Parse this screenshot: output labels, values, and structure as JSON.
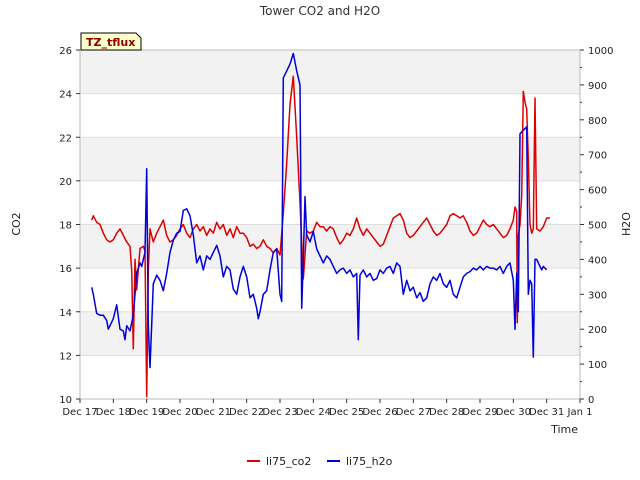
{
  "chart_data": {
    "type": "line",
    "title": "Tower CO2 and H2O",
    "xlabel": "Time",
    "ylabel": "CO2",
    "y2label": "H2O",
    "ylim": [
      10,
      26
    ],
    "y2lim": [
      0,
      1000
    ],
    "xlim": [
      0,
      15
    ],
    "yticks": [
      10,
      12,
      14,
      16,
      18,
      20,
      22,
      24,
      26
    ],
    "y2ticks": [
      0,
      100,
      200,
      300,
      400,
      500,
      600,
      700,
      800,
      900,
      1000
    ],
    "xtick_labels": [
      "Dec 17",
      "Dec 18",
      "Dec 19",
      "Dec 20",
      "Dec 21",
      "Dec 22",
      "Dec 23",
      "Dec 24",
      "Dec 25",
      "Dec 26",
      "Dec 27",
      "Dec 28",
      "Dec 29",
      "Dec 30",
      "Dec 31",
      "Jan 1"
    ],
    "tag_label": "TZ_tflux",
    "legend_position": "bottom-center",
    "series": [
      {
        "name": "li75_co2",
        "axis": "left",
        "color": "#dd0000",
        "points": [
          [
            0.35,
            18.2
          ],
          [
            0.4,
            18.4
          ],
          [
            0.5,
            18.1
          ],
          [
            0.6,
            18.0
          ],
          [
            0.7,
            17.6
          ],
          [
            0.8,
            17.3
          ],
          [
            0.9,
            17.2
          ],
          [
            1.0,
            17.3
          ],
          [
            1.1,
            17.6
          ],
          [
            1.2,
            17.8
          ],
          [
            1.3,
            17.5
          ],
          [
            1.4,
            17.2
          ],
          [
            1.5,
            17.0
          ],
          [
            1.55,
            15.9
          ],
          [
            1.6,
            12.3
          ],
          [
            1.65,
            16.4
          ],
          [
            1.7,
            15.0
          ],
          [
            1.8,
            16.9
          ],
          [
            1.9,
            17.0
          ],
          [
            1.95,
            16.8
          ],
          [
            2.0,
            10.1
          ],
          [
            2.05,
            15.9
          ],
          [
            2.1,
            17.8
          ],
          [
            2.2,
            17.2
          ],
          [
            2.3,
            17.6
          ],
          [
            2.4,
            17.9
          ],
          [
            2.5,
            18.2
          ],
          [
            2.6,
            17.5
          ],
          [
            2.7,
            17.2
          ],
          [
            2.8,
            17.3
          ],
          [
            2.9,
            17.5
          ],
          [
            3.0,
            17.8
          ],
          [
            3.1,
            18.0
          ],
          [
            3.2,
            17.6
          ],
          [
            3.3,
            17.4
          ],
          [
            3.4,
            17.8
          ],
          [
            3.5,
            18.0
          ],
          [
            3.6,
            17.7
          ],
          [
            3.7,
            17.9
          ],
          [
            3.8,
            17.5
          ],
          [
            3.9,
            17.8
          ],
          [
            4.0,
            17.6
          ],
          [
            4.1,
            18.1
          ],
          [
            4.2,
            17.8
          ],
          [
            4.3,
            18.0
          ],
          [
            4.4,
            17.5
          ],
          [
            4.5,
            17.8
          ],
          [
            4.6,
            17.4
          ],
          [
            4.7,
            17.9
          ],
          [
            4.8,
            17.6
          ],
          [
            4.9,
            17.6
          ],
          [
            5.0,
            17.4
          ],
          [
            5.1,
            17.0
          ],
          [
            5.2,
            17.1
          ],
          [
            5.3,
            16.9
          ],
          [
            5.4,
            17.0
          ],
          [
            5.5,
            17.3
          ],
          [
            5.6,
            17.0
          ],
          [
            5.7,
            16.9
          ],
          [
            5.8,
            16.7
          ],
          [
            5.9,
            16.9
          ],
          [
            6.0,
            16.6
          ],
          [
            6.1,
            18.5
          ],
          [
            6.2,
            20.8
          ],
          [
            6.3,
            23.5
          ],
          [
            6.4,
            24.8
          ],
          [
            6.5,
            22.0
          ],
          [
            6.6,
            19.0
          ],
          [
            6.7,
            15.5
          ],
          [
            6.8,
            17.7
          ],
          [
            6.9,
            17.6
          ],
          [
            7.0,
            17.7
          ],
          [
            7.1,
            18.1
          ],
          [
            7.2,
            17.9
          ],
          [
            7.3,
            17.9
          ],
          [
            7.4,
            17.7
          ],
          [
            7.5,
            17.9
          ],
          [
            7.6,
            17.8
          ],
          [
            7.7,
            17.4
          ],
          [
            7.8,
            17.1
          ],
          [
            7.9,
            17.3
          ],
          [
            8.0,
            17.6
          ],
          [
            8.1,
            17.5
          ],
          [
            8.2,
            17.8
          ],
          [
            8.3,
            18.3
          ],
          [
            8.4,
            17.8
          ],
          [
            8.5,
            17.5
          ],
          [
            8.6,
            17.8
          ],
          [
            8.7,
            17.6
          ],
          [
            8.8,
            17.4
          ],
          [
            8.9,
            17.2
          ],
          [
            9.0,
            17.0
          ],
          [
            9.1,
            17.1
          ],
          [
            9.2,
            17.5
          ],
          [
            9.3,
            17.9
          ],
          [
            9.4,
            18.3
          ],
          [
            9.5,
            18.4
          ],
          [
            9.6,
            18.5
          ],
          [
            9.7,
            18.2
          ],
          [
            9.8,
            17.6
          ],
          [
            9.9,
            17.4
          ],
          [
            10.0,
            17.5
          ],
          [
            10.1,
            17.7
          ],
          [
            10.2,
            17.9
          ],
          [
            10.3,
            18.1
          ],
          [
            10.4,
            18.3
          ],
          [
            10.5,
            18.0
          ],
          [
            10.6,
            17.7
          ],
          [
            10.7,
            17.5
          ],
          [
            10.8,
            17.6
          ],
          [
            10.9,
            17.8
          ],
          [
            11.0,
            18.0
          ],
          [
            11.1,
            18.4
          ],
          [
            11.2,
            18.5
          ],
          [
            11.3,
            18.4
          ],
          [
            11.4,
            18.3
          ],
          [
            11.5,
            18.4
          ],
          [
            11.6,
            18.1
          ],
          [
            11.7,
            17.7
          ],
          [
            11.8,
            17.5
          ],
          [
            11.9,
            17.6
          ],
          [
            12.0,
            17.9
          ],
          [
            12.1,
            18.2
          ],
          [
            12.2,
            18.0
          ],
          [
            12.3,
            17.9
          ],
          [
            12.4,
            18.0
          ],
          [
            12.5,
            17.8
          ],
          [
            12.6,
            17.6
          ],
          [
            12.7,
            17.4
          ],
          [
            12.8,
            17.5
          ],
          [
            12.9,
            17.8
          ],
          [
            13.0,
            18.2
          ],
          [
            13.05,
            18.8
          ],
          [
            13.1,
            18.6
          ],
          [
            13.12,
            13.5
          ],
          [
            13.15,
            17.5
          ],
          [
            13.2,
            18.0
          ],
          [
            13.25,
            19.3
          ],
          [
            13.3,
            24.1
          ],
          [
            13.35,
            23.6
          ],
          [
            13.4,
            23.3
          ],
          [
            13.45,
            21.0
          ],
          [
            13.5,
            18.0
          ],
          [
            13.55,
            17.6
          ],
          [
            13.6,
            17.8
          ],
          [
            13.65,
            23.8
          ],
          [
            13.7,
            17.8
          ],
          [
            13.8,
            17.7
          ],
          [
            13.9,
            17.9
          ],
          [
            14.0,
            18.3
          ],
          [
            14.1,
            18.3
          ]
        ]
      },
      {
        "name": "li75_h2o",
        "axis": "right",
        "color": "#0000dd",
        "points": [
          [
            0.35,
            320
          ],
          [
            0.4,
            300
          ],
          [
            0.5,
            245
          ],
          [
            0.6,
            240
          ],
          [
            0.7,
            240
          ],
          [
            0.8,
            225
          ],
          [
            0.85,
            200
          ],
          [
            0.9,
            210
          ],
          [
            1.0,
            230
          ],
          [
            1.1,
            270
          ],
          [
            1.2,
            200
          ],
          [
            1.3,
            195
          ],
          [
            1.35,
            170
          ],
          [
            1.4,
            210
          ],
          [
            1.5,
            195
          ],
          [
            1.6,
            240
          ],
          [
            1.7,
            360
          ],
          [
            1.8,
            390
          ],
          [
            1.85,
            380
          ],
          [
            1.9,
            400
          ],
          [
            1.95,
            420
          ],
          [
            2.0,
            660
          ],
          [
            2.05,
            210
          ],
          [
            2.1,
            90
          ],
          [
            2.2,
            330
          ],
          [
            2.3,
            355
          ],
          [
            2.4,
            340
          ],
          [
            2.5,
            310
          ],
          [
            2.6,
            360
          ],
          [
            2.7,
            420
          ],
          [
            2.8,
            455
          ],
          [
            2.9,
            475
          ],
          [
            3.0,
            480
          ],
          [
            3.1,
            540
          ],
          [
            3.2,
            545
          ],
          [
            3.3,
            525
          ],
          [
            3.4,
            470
          ],
          [
            3.5,
            390
          ],
          [
            3.6,
            410
          ],
          [
            3.7,
            370
          ],
          [
            3.8,
            410
          ],
          [
            3.9,
            400
          ],
          [
            4.0,
            420
          ],
          [
            4.1,
            440
          ],
          [
            4.2,
            410
          ],
          [
            4.3,
            350
          ],
          [
            4.4,
            380
          ],
          [
            4.5,
            370
          ],
          [
            4.6,
            315
          ],
          [
            4.7,
            300
          ],
          [
            4.8,
            350
          ],
          [
            4.9,
            380
          ],
          [
            5.0,
            350
          ],
          [
            5.1,
            290
          ],
          [
            5.2,
            300
          ],
          [
            5.3,
            260
          ],
          [
            5.35,
            230
          ],
          [
            5.4,
            250
          ],
          [
            5.5,
            300
          ],
          [
            5.6,
            310
          ],
          [
            5.7,
            370
          ],
          [
            5.8,
            420
          ],
          [
            5.9,
            430
          ],
          [
            6.0,
            300
          ],
          [
            6.05,
            280
          ],
          [
            6.1,
            920
          ],
          [
            6.2,
            940
          ],
          [
            6.3,
            960
          ],
          [
            6.4,
            990
          ],
          [
            6.5,
            940
          ],
          [
            6.6,
            900
          ],
          [
            6.65,
            260
          ],
          [
            6.7,
            400
          ],
          [
            6.75,
            580
          ],
          [
            6.8,
            470
          ],
          [
            6.9,
            450
          ],
          [
            7.0,
            480
          ],
          [
            7.1,
            430
          ],
          [
            7.2,
            410
          ],
          [
            7.3,
            390
          ],
          [
            7.4,
            410
          ],
          [
            7.5,
            400
          ],
          [
            7.6,
            380
          ],
          [
            7.7,
            360
          ],
          [
            7.8,
            370
          ],
          [
            7.9,
            375
          ],
          [
            8.0,
            360
          ],
          [
            8.1,
            370
          ],
          [
            8.2,
            350
          ],
          [
            8.3,
            360
          ],
          [
            8.35,
            170
          ],
          [
            8.4,
            355
          ],
          [
            8.5,
            370
          ],
          [
            8.6,
            350
          ],
          [
            8.7,
            360
          ],
          [
            8.8,
            340
          ],
          [
            8.9,
            345
          ],
          [
            9.0,
            370
          ],
          [
            9.1,
            360
          ],
          [
            9.2,
            375
          ],
          [
            9.3,
            380
          ],
          [
            9.4,
            360
          ],
          [
            9.5,
            390
          ],
          [
            9.6,
            380
          ],
          [
            9.7,
            300
          ],
          [
            9.8,
            340
          ],
          [
            9.9,
            310
          ],
          [
            10.0,
            320
          ],
          [
            10.1,
            290
          ],
          [
            10.2,
            305
          ],
          [
            10.3,
            280
          ],
          [
            10.4,
            290
          ],
          [
            10.5,
            330
          ],
          [
            10.6,
            350
          ],
          [
            10.7,
            340
          ],
          [
            10.8,
            360
          ],
          [
            10.9,
            330
          ],
          [
            11.0,
            320
          ],
          [
            11.1,
            340
          ],
          [
            11.2,
            300
          ],
          [
            11.3,
            290
          ],
          [
            11.4,
            320
          ],
          [
            11.5,
            350
          ],
          [
            11.6,
            360
          ],
          [
            11.7,
            365
          ],
          [
            11.8,
            375
          ],
          [
            11.9,
            370
          ],
          [
            12.0,
            380
          ],
          [
            12.1,
            370
          ],
          [
            12.2,
            380
          ],
          [
            12.3,
            375
          ],
          [
            12.4,
            375
          ],
          [
            12.5,
            370
          ],
          [
            12.6,
            380
          ],
          [
            12.7,
            360
          ],
          [
            12.8,
            380
          ],
          [
            12.9,
            390
          ],
          [
            13.0,
            340
          ],
          [
            13.05,
            200
          ],
          [
            13.1,
            360
          ],
          [
            13.15,
            250
          ],
          [
            13.2,
            760
          ],
          [
            13.3,
            770
          ],
          [
            13.4,
            780
          ],
          [
            13.45,
            300
          ],
          [
            13.5,
            340
          ],
          [
            13.55,
            330
          ],
          [
            13.6,
            120
          ],
          [
            13.65,
            400
          ],
          [
            13.7,
            400
          ],
          [
            13.8,
            380
          ],
          [
            13.85,
            370
          ],
          [
            13.9,
            380
          ],
          [
            14.0,
            370
          ]
        ]
      }
    ]
  }
}
